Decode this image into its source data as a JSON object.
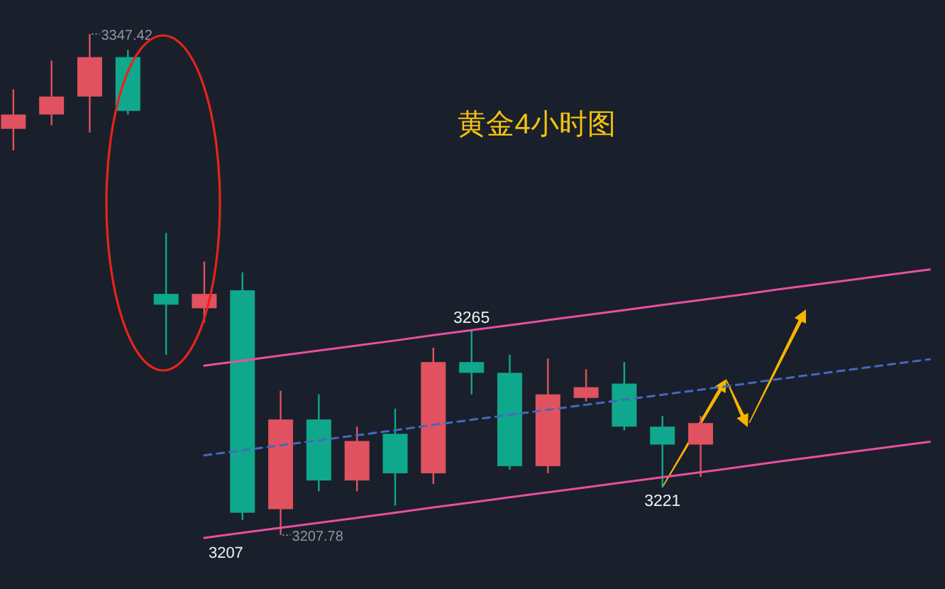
{
  "chart_data": {
    "type": "candlestick",
    "title": "黄金4小时图",
    "categories": [
      null,
      null,
      null,
      null,
      null,
      null,
      null,
      null,
      null,
      null,
      null,
      null,
      null,
      null,
      null,
      null,
      null,
      null,
      null,
      null,
      null,
      null,
      null,
      null,
      null
    ],
    "ohlc": [
      [
        3321,
        3332,
        3315,
        3325
      ],
      [
        3325,
        3340,
        3322,
        3330
      ],
      [
        3330,
        3347.42,
        3320,
        3341
      ],
      [
        3341,
        3343,
        3325,
        3326
      ],
      [
        3275,
        3292,
        3258,
        3272
      ],
      [
        3271,
        3284,
        3267,
        3275
      ],
      [
        3276,
        3281,
        3212,
        3214
      ],
      [
        3215,
        3248,
        3207.78,
        3240
      ],
      [
        3240,
        3247,
        3220,
        3223
      ],
      [
        3223,
        3238,
        3220,
        3234
      ],
      [
        3236,
        3243,
        3216,
        3225
      ],
      [
        3225,
        3260,
        3222,
        3256
      ],
      [
        3256,
        3265,
        3247,
        3253
      ],
      [
        3253,
        3258,
        3226,
        3227
      ],
      [
        3227,
        3257,
        3225,
        3247
      ],
      [
        3246,
        3254,
        3245,
        3249
      ],
      [
        3250,
        3256,
        3237,
        3238
      ],
      [
        3238,
        3241,
        3221,
        3233
      ],
      [
        3233,
        3241,
        3224,
        3239
      ],
      null,
      null,
      null,
      null,
      null,
      null
    ],
    "colors": [
      "#e0525f",
      "#e0525f",
      "#e0525f",
      "#0fa88c",
      "#0fa88c",
      "#e0525f",
      "#0fa88c",
      "#e0525f",
      "#0fa88c",
      "#e0525f",
      "#0fa88c",
      "#e0525f",
      "#0fa88c",
      "#0fa88c",
      "#e0525f",
      "#e0525f",
      "#0fa88c",
      "#0fa88c",
      "#e0525f",
      null,
      null,
      null,
      null,
      null,
      null
    ],
    "value_labels": [
      null,
      null,
      "3347.42",
      null,
      null,
      null,
      null,
      "3207.78",
      null,
      null,
      null,
      null,
      "3265",
      null,
      null,
      null,
      null,
      "3221",
      null,
      null,
      null,
      null,
      null,
      null,
      null
    ],
    "series": [
      {
        "type": "line",
        "color": "#e94f9f",
        "values": [
          null,
          null,
          null,
          null,
          null,
          3255,
          3256.4,
          3257.8,
          3259.2,
          3260.6,
          3262.0,
          3263.5,
          3264.9,
          3266.3,
          3267.7,
          3269.1,
          3270.5,
          3271.9,
          3273.3,
          3274.7,
          3276.2,
          3277.6,
          3279.0,
          3280.4,
          3281.8
        ]
      },
      {
        "type": "line",
        "color": "#4767c0",
        "line_style": "dashed",
        "values": [
          null,
          null,
          null,
          null,
          null,
          3230,
          3231.4,
          3232.8,
          3234.2,
          3235.6,
          3237.0,
          3238.5,
          3239.9,
          3241.3,
          3242.7,
          3244.1,
          3245.5,
          3246.9,
          3248.3,
          3249.7,
          3251.2,
          3252.6,
          3254.0,
          3255.4,
          3256.8
        ]
      },
      {
        "type": "line",
        "color": "#e94f9f",
        "values": [
          null,
          null,
          null,
          null,
          null,
          3207,
          3208.4,
          3209.8,
          3211.2,
          3212.6,
          3214.0,
          3215.5,
          3216.9,
          3218.3,
          3219.7,
          3221.1,
          3222.5,
          3223.9,
          3225.3,
          3226.7,
          3228.2,
          3229.6,
          3231.0,
          3232.4,
          3233.8
        ],
        "value_labels": [
          null,
          null,
          null,
          null,
          null,
          "3207",
          null,
          null,
          null,
          null,
          null,
          null,
          null,
          null,
          null,
          null,
          null,
          null,
          null,
          null,
          null,
          null,
          null,
          null,
          null
        ]
      }
    ]
  }
}
